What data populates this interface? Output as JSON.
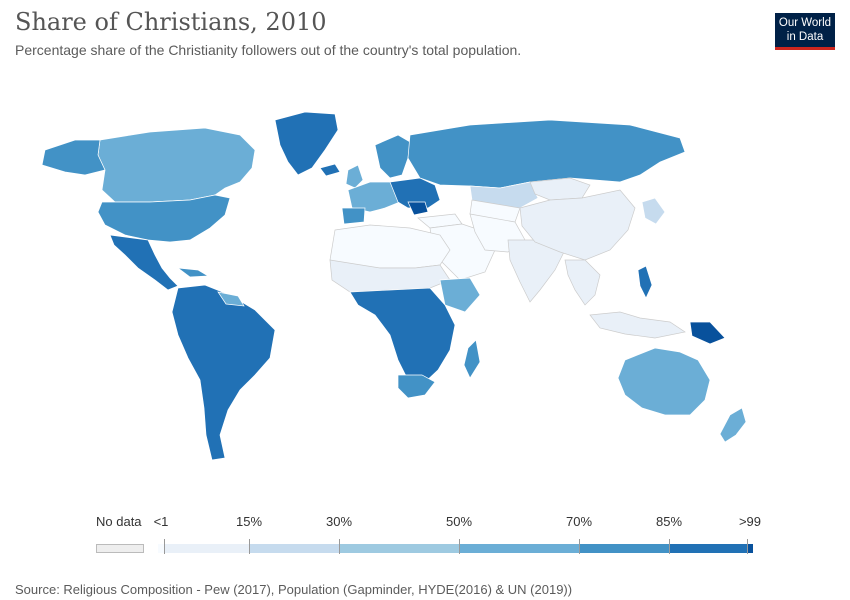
{
  "header": {
    "title": "Share of Christians, 2010",
    "subtitle": "Percentage share of the Christianity followers out of the country's total population.",
    "logo_line1": "Our World",
    "logo_line2": "in Data"
  },
  "legend": {
    "no_data_label": "No data",
    "bins": [
      {
        "from": "<1",
        "to": "15%",
        "color": "#e9f0f8"
      },
      {
        "from": "15%",
        "to": "30%",
        "color": "#c6dbee"
      },
      {
        "from": "30%",
        "to": "50%",
        "color": "#9ecae1"
      },
      {
        "from": "50%",
        "to": "70%",
        "color": "#6baed6"
      },
      {
        "from": "70%",
        "to": "85%",
        "color": "#4292c6"
      },
      {
        "from": "85%",
        "to": ">99",
        "color": "#2171b5"
      }
    ],
    "top_color": "#08519c",
    "tick_labels": [
      "<1",
      "15%",
      "30%",
      "50%",
      "70%",
      "85%",
      ">99"
    ],
    "lowest_color": "#f7fbff"
  },
  "footer": {
    "source": "Source: Religious Composition - Pew (2017), Population (Gapminder, HYDE(2016) & UN (2019))"
  },
  "colors": {
    "title": "#555555",
    "logo_bg": "#002147",
    "logo_accent": "#ce261e",
    "ocean": "#ffffff",
    "border": "#ffffff"
  }
}
